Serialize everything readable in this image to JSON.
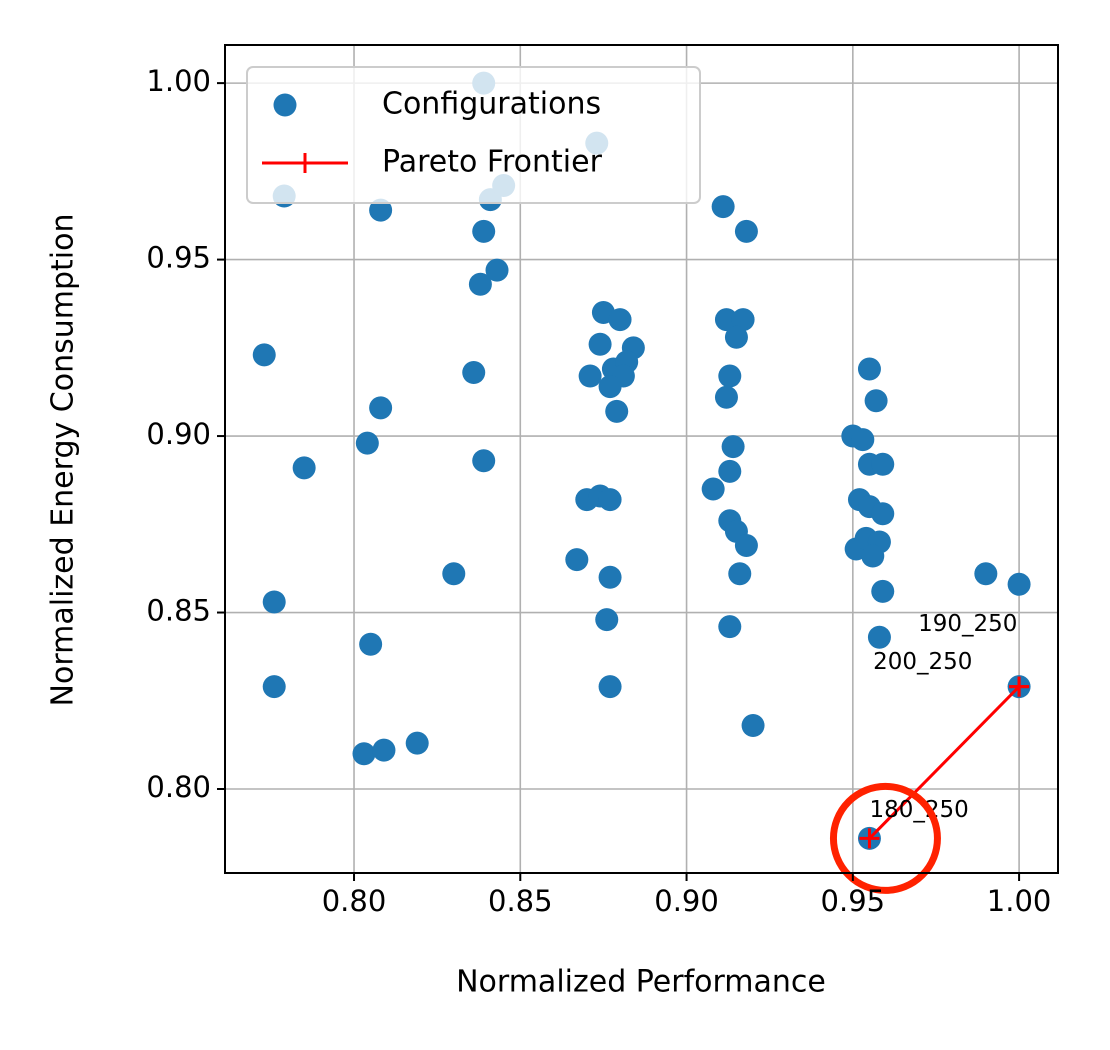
{
  "chart_data": {
    "type": "scatter",
    "xlabel": "Normalized Performance",
    "ylabel": "Normalized Energy Consumption",
    "xlim": [
      0.7612,
      1.0117
    ],
    "ylim": [
      0.7762,
      1.0108
    ],
    "xticks": [
      {
        "value": 0.8,
        "label": "0.80"
      },
      {
        "value": 0.85,
        "label": "0.85"
      },
      {
        "value": 0.9,
        "label": "0.90"
      },
      {
        "value": 0.95,
        "label": "0.95"
      },
      {
        "value": 1.0,
        "label": "1.00"
      }
    ],
    "yticks": [
      {
        "value": 0.8,
        "label": "0.80"
      },
      {
        "value": 0.85,
        "label": "0.85"
      },
      {
        "value": 0.9,
        "label": "0.90"
      },
      {
        "value": 0.95,
        "label": "0.95"
      },
      {
        "value": 1.0,
        "label": "1.00"
      }
    ],
    "grid": true,
    "legend": "upper left",
    "series": [
      {
        "name": "Configurations",
        "type": "scatter",
        "color": "#1f77b4",
        "x": [
          0.839,
          0.873,
          0.779,
          0.808,
          0.841,
          0.845,
          0.839,
          0.843,
          0.838,
          0.911,
          0.918,
          0.773,
          0.836,
          0.808,
          0.804,
          0.785,
          0.839,
          0.875,
          0.88,
          0.884,
          0.874,
          0.871,
          0.878,
          0.882,
          0.881,
          0.877,
          0.879,
          0.912,
          0.917,
          0.915,
          0.913,
          0.912,
          0.914,
          0.908,
          0.913,
          0.913,
          0.915,
          0.918,
          0.916,
          0.913,
          0.92,
          0.87,
          0.874,
          0.877,
          0.867,
          0.877,
          0.876,
          0.877,
          0.83,
          0.805,
          0.776,
          0.776,
          0.803,
          0.809,
          0.819,
          0.95,
          0.953,
          0.955,
          0.957,
          0.955,
          0.959,
          0.952,
          0.955,
          0.959,
          0.951,
          0.954,
          0.958,
          0.956,
          0.959,
          0.958,
          0.99,
          1.0,
          1.0,
          0.955
        ],
        "y": [
          1.0,
          0.983,
          0.968,
          0.964,
          0.967,
          0.971,
          0.958,
          0.947,
          0.943,
          0.965,
          0.958,
          0.923,
          0.918,
          0.908,
          0.898,
          0.891,
          0.893,
          0.935,
          0.933,
          0.925,
          0.926,
          0.917,
          0.919,
          0.921,
          0.917,
          0.914,
          0.907,
          0.933,
          0.933,
          0.928,
          0.917,
          0.911,
          0.897,
          0.885,
          0.89,
          0.876,
          0.873,
          0.869,
          0.861,
          0.846,
          0.818,
          0.882,
          0.883,
          0.882,
          0.865,
          0.86,
          0.848,
          0.829,
          0.861,
          0.841,
          0.853,
          0.829,
          0.81,
          0.811,
          0.813,
          0.9,
          0.899,
          0.919,
          0.91,
          0.892,
          0.892,
          0.882,
          0.88,
          0.878,
          0.868,
          0.871,
          0.87,
          0.866,
          0.856,
          0.843,
          0.861,
          0.858,
          0.829,
          0.786
        ]
      },
      {
        "name": "Pareto Frontier",
        "type": "line",
        "color": "#ff0000",
        "x": [
          0.955,
          1.0,
          1.0
        ],
        "y": [
          0.786,
          0.829,
          0.829
        ],
        "labels": [
          "180_250",
          "200_250",
          "190_250"
        ]
      }
    ]
  }
}
